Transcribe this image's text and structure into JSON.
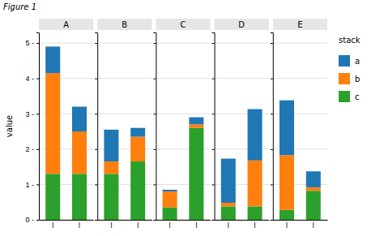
{
  "chart_data": [
    {
      "type": "bar",
      "stacked": true,
      "grid": true,
      "legend": "right",
      "legend_title": "stack",
      "annotations": [
        "Figure 1"
      ],
      "title": "A",
      "ylabel": "value",
      "categories": [
        "l",
        "l"
      ],
      "series": [
        {
          "name": "a",
          "values": [
            0.75,
            0.7
          ]
        },
        {
          "name": "b",
          "values": [
            2.85,
            1.2
          ]
        },
        {
          "name": "c",
          "values": [
            1.3,
            1.3
          ]
        }
      ],
      "ylim": [
        0,
        5.3
      ],
      "yticks": [
        {
          "value": 0,
          "label": "0 -"
        },
        {
          "value": 1,
          "label": "1 -"
        },
        {
          "value": 2,
          "label": "2 -"
        },
        {
          "value": 3,
          "label": "3 -"
        },
        {
          "value": 4,
          "label": "4 -"
        },
        {
          "value": 5,
          "label": "5 -"
        }
      ]
    },
    {
      "type": "bar",
      "stacked": true,
      "grid": true,
      "tick_labels": "x",
      "title": "B",
      "categories": [
        "l",
        "l"
      ],
      "series": [
        {
          "name": "a",
          "values": [
            0.9,
            0.25
          ]
        },
        {
          "name": "b",
          "values": [
            0.35,
            0.7
          ]
        },
        {
          "name": "c",
          "values": [
            1.3,
            1.65
          ]
        }
      ],
      "ylim": [
        0,
        5.3
      ],
      "yticks": [
        0,
        1,
        2,
        3,
        4,
        5
      ]
    },
    {
      "type": "bar",
      "stacked": true,
      "grid": true,
      "tick_labels": "x",
      "title": "C",
      "categories": [
        "l",
        "l"
      ],
      "series": [
        {
          "name": "a",
          "values": [
            0.05,
            0.2
          ]
        },
        {
          "name": "b",
          "values": [
            0.45,
            0.1
          ]
        },
        {
          "name": "c",
          "values": [
            0.35,
            2.6
          ]
        }
      ],
      "ylim": [
        0,
        5.3
      ],
      "yticks": [
        0,
        1,
        2,
        3,
        4,
        5
      ]
    },
    {
      "type": "bar",
      "stacked": true,
      "grid": true,
      "tick_labels": "x",
      "title": "D",
      "categories": [
        "l",
        "l"
      ],
      "series": [
        {
          "name": "a",
          "values": [
            1.25,
            1.45
          ]
        },
        {
          "name": "b",
          "values": [
            0.1,
            1.3
          ]
        },
        {
          "name": "c",
          "values": [
            0.38,
            0.38
          ]
        }
      ],
      "ylim": [
        0,
        5.3
      ],
      "yticks": [
        0,
        1,
        2,
        3,
        4,
        5
      ]
    },
    {
      "type": "bar",
      "stacked": true,
      "grid": true,
      "tick_labels": "x",
      "title": "E",
      "categories": [
        "l",
        "l"
      ],
      "series": [
        {
          "name": "a",
          "values": [
            1.55,
            0.45
          ]
        },
        {
          "name": "b",
          "values": [
            1.55,
            0.1
          ]
        },
        {
          "name": "c",
          "values": [
            0.28,
            0.82
          ]
        }
      ],
      "ylim": [
        0,
        5.3
      ],
      "yticks": [
        0,
        1,
        2,
        3,
        4,
        5
      ]
    }
  ]
}
